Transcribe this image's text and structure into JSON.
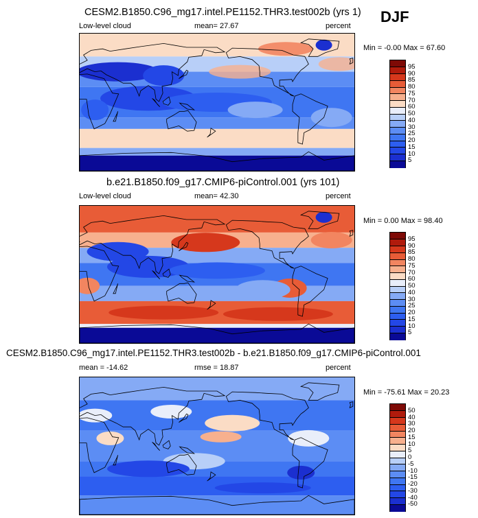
{
  "season": "DJF",
  "chart_data": [
    {
      "type": "heatmap",
      "title": "CESM2.B1850.C96_mg17.intel.PE1152.THR3.test002b (yrs 1)",
      "left_label": "Low-level cloud",
      "center_label": "mean=  27.67",
      "right_label": "percent",
      "minmax": "Min =  -0.00 Max =  67.60",
      "colorbar": {
        "levels": [
          "5",
          "10",
          "15",
          "20",
          "25",
          "30",
          "40",
          "50",
          "60",
          "70",
          "75",
          "80",
          "85",
          "90",
          "95"
        ],
        "colors": [
          "#0a0a96",
          "#1b2fd0",
          "#2347e6",
          "#2d5ef0",
          "#3f76f2",
          "#5c8df4",
          "#85aaf5",
          "#b8cff8",
          "#e9eefa",
          "#fbdcc5",
          "#f7b08e",
          "#f28560",
          "#e85c37",
          "#d6381c",
          "#b01b0c",
          "#7e0a06"
        ]
      }
    },
    {
      "type": "heatmap",
      "title": "b.e21.B1850.f09_g17.CMIP6-piControl.001 (yrs 101)",
      "left_label": "Low-level cloud",
      "center_label": "mean=  42.30",
      "right_label": "percent",
      "minmax": "Min =   0.00 Max =  98.40",
      "colorbar": {
        "levels": [
          "5",
          "10",
          "15",
          "20",
          "25",
          "30",
          "40",
          "50",
          "60",
          "70",
          "75",
          "80",
          "85",
          "90",
          "95"
        ],
        "colors": [
          "#0a0a96",
          "#1b2fd0",
          "#2347e6",
          "#2d5ef0",
          "#3f76f2",
          "#5c8df4",
          "#85aaf5",
          "#b8cff8",
          "#e9eefa",
          "#fbdcc5",
          "#f7b08e",
          "#f28560",
          "#e85c37",
          "#d6381c",
          "#b01b0c",
          "#7e0a06"
        ]
      }
    },
    {
      "type": "heatmap",
      "title": "CESM2.B1850.C96_mg17.intel.PE1152.THR3.test002b - b.e21.B1850.f09_g17.CMIP6-piControl.001",
      "left_label": "mean = -14.62",
      "center_label": "rmse =  18.87",
      "right_label": "percent",
      "minmax": "Min = -75.61 Max =  20.23",
      "colorbar": {
        "levels": [
          "-50",
          "-40",
          "-30",
          "-20",
          "-15",
          "-10",
          "-5",
          "0",
          "5",
          "10",
          "15",
          "20",
          "30",
          "40",
          "50"
        ],
        "colors": [
          "#0a0a96",
          "#1b2fd0",
          "#2347e6",
          "#2d5ef0",
          "#3f76f2",
          "#5c8df4",
          "#85aaf5",
          "#b8cff8",
          "#e9eefa",
          "#fbdcc5",
          "#f7b08e",
          "#f28560",
          "#e85c37",
          "#d6381c",
          "#b01b0c",
          "#7e0a06"
        ]
      }
    }
  ]
}
